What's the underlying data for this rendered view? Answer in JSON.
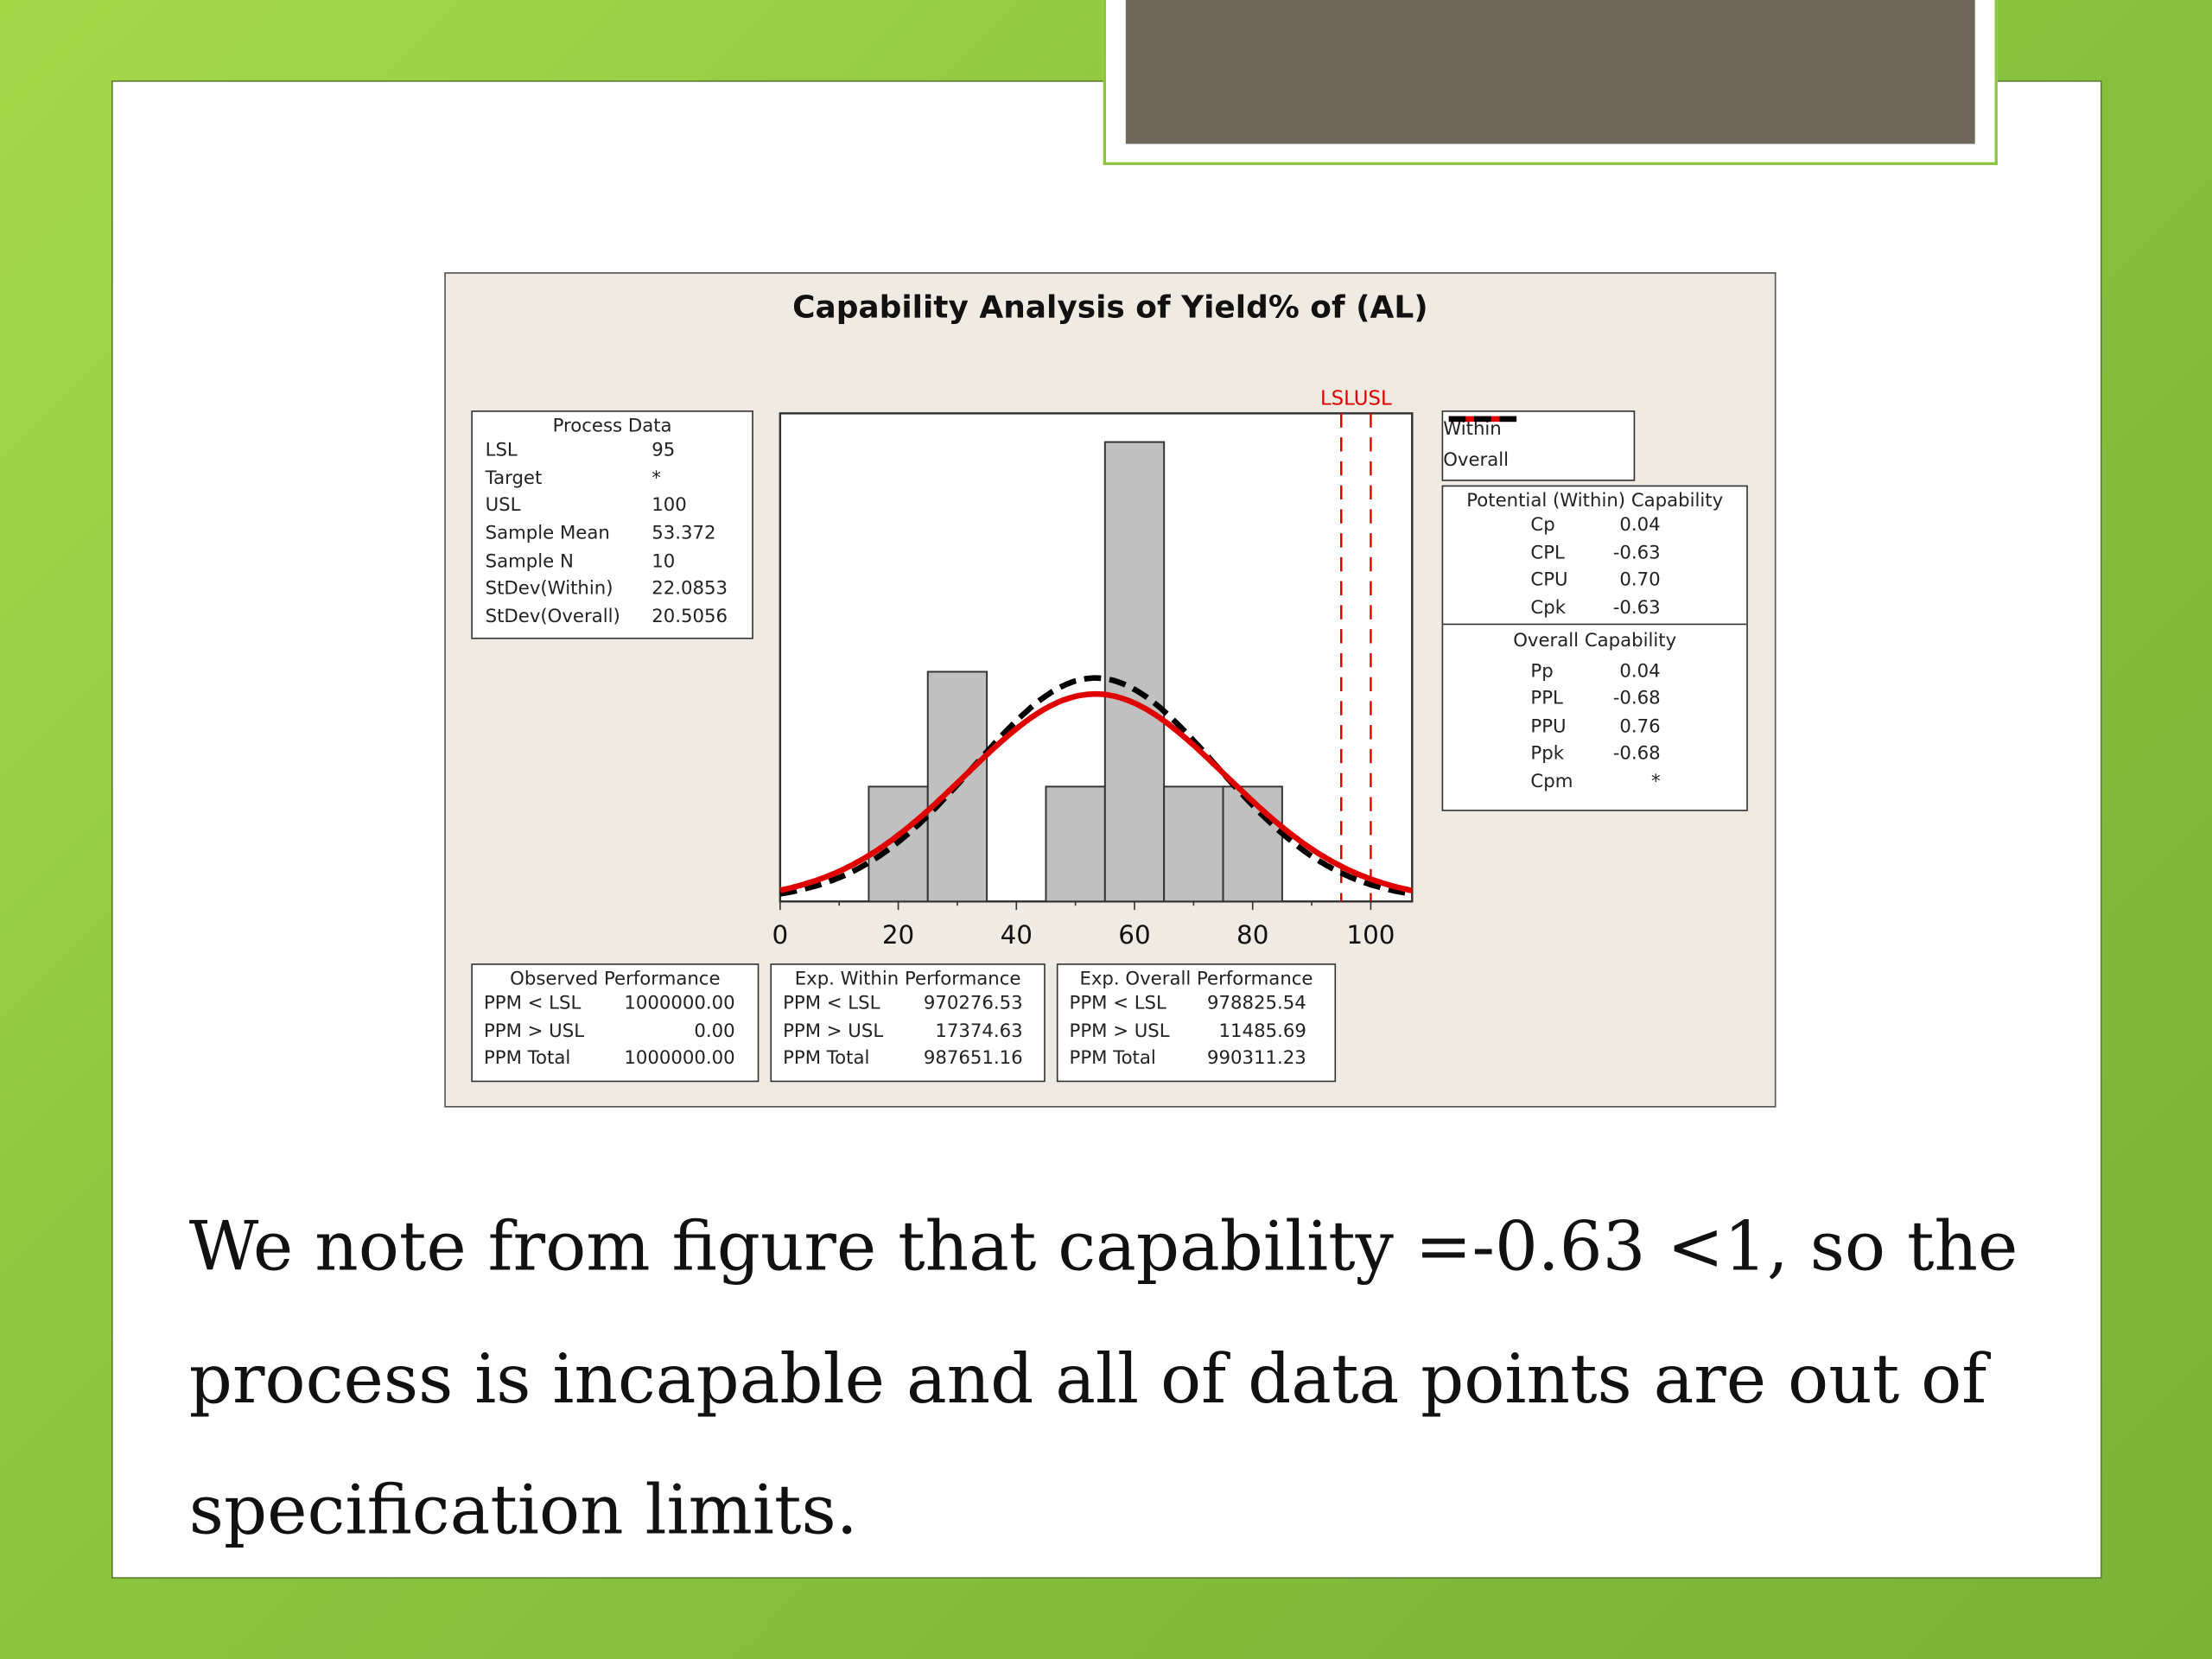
{
  "caption": [
    "We note from figure that capability =-0.63 <1, so the",
    "process is incapable and all of data points are out of",
    "specification limits."
  ],
  "chart_data": {
    "type": "bar",
    "title": "Capability Analysis of Yield% of (AL)",
    "bins": [
      [
        15,
        25
      ],
      [
        25,
        35
      ],
      [
        45,
        55
      ],
      [
        55,
        65
      ],
      [
        65,
        75
      ],
      [
        75,
        85
      ]
    ],
    "values": [
      1,
      2,
      1,
      4,
      1,
      1
    ],
    "xlim": [
      0,
      107
    ],
    "ylim": [
      0,
      4.25
    ],
    "xticks": [
      "0",
      "20",
      "40",
      "60",
      "80",
      "100"
    ],
    "spec_lines": {
      "LSL": 95,
      "USL": 100,
      "label": "LSLUSL",
      "color": "#e00000"
    },
    "curves": [
      {
        "name": "Within",
        "mean": 53.372,
        "stdev": 22.0853,
        "color": "#e00000",
        "style": "solid"
      },
      {
        "name": "Overall",
        "mean": 53.372,
        "stdev": 20.5056,
        "color": "#000000",
        "style": "dashed"
      }
    ],
    "sample_n": 10,
    "bin_width": 10,
    "legend": "top-right",
    "process_data": {
      "title": "Process Data",
      "rows": [
        [
          "LSL",
          "95"
        ],
        [
          "Target",
          "*"
        ],
        [
          "USL",
          "100"
        ],
        [
          "Sample Mean",
          "53.372"
        ],
        [
          "Sample N",
          "10"
        ],
        [
          "StDev(Within)",
          "22.0853"
        ],
        [
          "StDev(Overall)",
          "20.5056"
        ]
      ]
    },
    "within_capability": {
      "title": "Potential (Within) Capability",
      "rows": [
        [
          "Cp",
          "0.04"
        ],
        [
          "CPL",
          "-0.63"
        ],
        [
          "CPU",
          "0.70"
        ],
        [
          "Cpk",
          "-0.63"
        ]
      ]
    },
    "overall_capability": {
      "title": "Overall Capability",
      "rows": [
        [
          "Pp",
          "0.04"
        ],
        [
          "PPL",
          "-0.68"
        ],
        [
          "PPU",
          "0.76"
        ],
        [
          "Ppk",
          "-0.68"
        ],
        [
          "Cpm",
          "*"
        ]
      ]
    },
    "performance": [
      {
        "title": "Observed Performance",
        "rows": [
          [
            "PPM < LSL",
            "1000000.00"
          ],
          [
            "PPM > USL",
            "0.00"
          ],
          [
            "PPM Total",
            "1000000.00"
          ]
        ]
      },
      {
        "title": "Exp. Within Performance",
        "rows": [
          [
            "PPM < LSL",
            "970276.53"
          ],
          [
            "PPM > USL",
            "17374.63"
          ],
          [
            "PPM Total",
            "987651.16"
          ]
        ]
      },
      {
        "title": "Exp. Overall Performance",
        "rows": [
          [
            "PPM < LSL",
            "978825.54"
          ],
          [
            "PPM > USL",
            "11485.69"
          ],
          [
            "PPM Total",
            "990311.23"
          ]
        ]
      }
    ]
  }
}
